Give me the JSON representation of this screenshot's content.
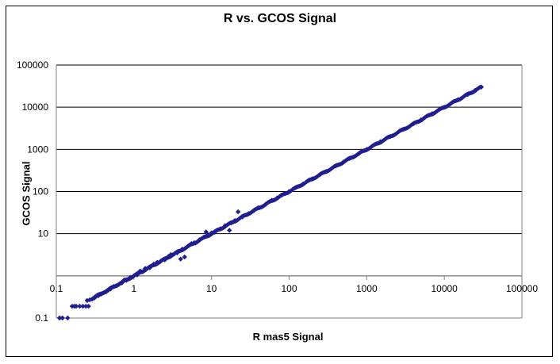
{
  "chart_data": {
    "type": "scatter",
    "title": "R vs. GCOS Signal",
    "xlabel": "R mas5 Signal",
    "ylabel": "GCOS Signal",
    "x_scale": "log",
    "y_scale": "log",
    "xlim": [
      0.1,
      100000
    ],
    "ylim": [
      0.1,
      100000
    ],
    "x_ticks": [
      "0.1",
      "1",
      "10",
      "100",
      "1000",
      "10000",
      "100000"
    ],
    "y_ticks": [
      "0.1",
      "10",
      "100",
      "1000",
      "10000",
      "100000"
    ],
    "grid": "horizontal",
    "legend": "none",
    "marker_color": "#1f1f8f",
    "series": [
      {
        "points": [
          [
            0.11,
            0.1
          ],
          [
            0.12,
            0.1
          ],
          [
            0.14,
            0.1
          ],
          [
            0.16,
            0.19
          ],
          [
            0.17,
            0.19
          ],
          [
            0.18,
            0.19
          ],
          [
            0.2,
            0.19
          ],
          [
            0.22,
            0.19
          ],
          [
            0.24,
            0.19
          ],
          [
            0.26,
            0.19
          ],
          [
            0.25,
            0.26
          ],
          [
            0.27,
            0.27
          ],
          [
            0.29,
            0.28
          ],
          [
            0.31,
            0.3
          ],
          [
            0.33,
            0.33
          ],
          [
            0.35,
            0.34
          ],
          [
            0.38,
            0.37
          ],
          [
            0.41,
            0.4
          ],
          [
            0.44,
            0.42
          ],
          [
            0.47,
            0.46
          ],
          [
            0.5,
            0.49
          ],
          [
            0.55,
            0.56
          ],
          [
            0.6,
            0.59
          ],
          [
            0.65,
            0.64
          ],
          [
            0.7,
            0.68
          ],
          [
            0.75,
            0.8
          ],
          [
            0.8,
            0.78
          ],
          [
            0.9,
            0.92
          ],
          [
            1,
            1
          ],
          [
            1.1,
            1.05
          ],
          [
            1.2,
            1.3
          ],
          [
            1.3,
            1.25
          ],
          [
            1.4,
            1.5
          ],
          [
            1.6,
            1.55
          ],
          [
            1.8,
            1.9
          ],
          [
            2,
            2.1
          ],
          [
            2.2,
            2.2
          ],
          [
            2.5,
            2.4
          ],
          [
            2.8,
            2.9
          ],
          [
            3,
            3.2
          ],
          [
            3.3,
            3.3
          ],
          [
            3.6,
            3.5
          ],
          [
            4,
            2.5
          ],
          [
            4.5,
            2.8
          ],
          [
            4.2,
            4.3
          ],
          [
            5,
            5.1
          ],
          [
            5.5,
            5.8
          ],
          [
            6,
            6.1
          ],
          [
            7,
            7.2
          ],
          [
            8,
            8.3
          ],
          [
            8.5,
            11
          ],
          [
            9,
            9.4
          ],
          [
            10,
            10.5
          ],
          [
            11,
            10.8
          ],
          [
            13,
            13
          ],
          [
            15,
            15.5
          ],
          [
            17,
            12
          ],
          [
            18,
            18
          ],
          [
            20,
            20.5
          ],
          [
            22,
            33
          ],
          [
            25,
            25
          ],
          [
            30,
            30
          ],
          [
            35,
            35
          ],
          [
            40,
            41
          ],
          [
            50,
            50
          ],
          [
            60,
            62
          ],
          [
            70,
            70
          ],
          [
            80,
            82
          ],
          [
            100,
            100
          ],
          [
            120,
            122
          ],
          [
            150,
            150
          ],
          [
            180,
            185
          ],
          [
            200,
            200
          ],
          [
            250,
            252
          ],
          [
            300,
            300
          ],
          [
            400,
            405
          ],
          [
            500,
            500
          ],
          [
            600,
            610
          ],
          [
            800,
            800
          ],
          [
            1000,
            1000
          ],
          [
            1500,
            1520
          ],
          [
            2000,
            2000
          ],
          [
            3000,
            3000
          ],
          [
            4000,
            4050
          ],
          [
            5000,
            5000
          ],
          [
            7000,
            7050
          ],
          [
            10000,
            10000
          ],
          [
            15000,
            15100
          ],
          [
            20000,
            20000
          ],
          [
            25000,
            25200
          ],
          [
            30000,
            30000
          ]
        ]
      }
    ]
  }
}
